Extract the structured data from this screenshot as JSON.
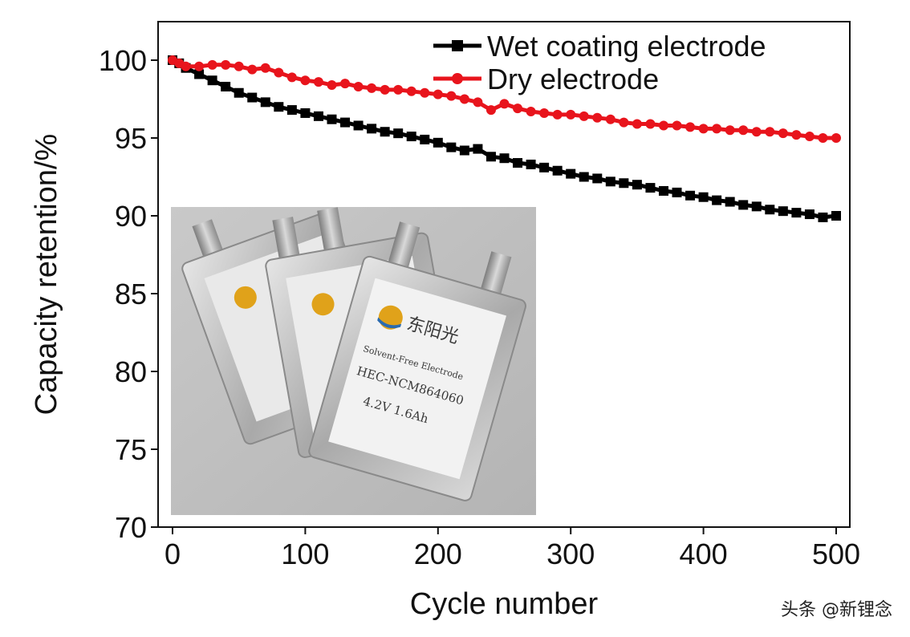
{
  "chart_data": {
    "type": "line",
    "title": "",
    "xlabel": "Cycle number",
    "ylabel": "Capacity retention/%",
    "xlim": [
      0,
      500
    ],
    "ylim": [
      70,
      102
    ],
    "xticks": [
      0,
      100,
      200,
      300,
      400,
      500
    ],
    "yticks": [
      70,
      75,
      80,
      85,
      90,
      95,
      100
    ],
    "legend_position": "top-right",
    "series": [
      {
        "name": "Wet coating electrode",
        "color": "#000000",
        "marker": "square",
        "x": [
          0,
          5,
          10,
          20,
          30,
          40,
          50,
          60,
          70,
          80,
          90,
          100,
          110,
          120,
          130,
          140,
          150,
          160,
          170,
          180,
          190,
          200,
          210,
          220,
          230,
          240,
          250,
          260,
          270,
          280,
          290,
          300,
          310,
          320,
          330,
          340,
          350,
          360,
          370,
          380,
          390,
          400,
          410,
          420,
          430,
          440,
          450,
          460,
          470,
          480,
          490,
          500
        ],
        "y": [
          100.0,
          99.8,
          99.5,
          99.1,
          98.7,
          98.3,
          97.9,
          97.6,
          97.3,
          97.0,
          96.8,
          96.6,
          96.4,
          96.2,
          96.0,
          95.8,
          95.6,
          95.4,
          95.3,
          95.1,
          94.9,
          94.7,
          94.4,
          94.2,
          94.3,
          93.8,
          93.7,
          93.4,
          93.3,
          93.1,
          92.9,
          92.7,
          92.5,
          92.4,
          92.2,
          92.1,
          92.0,
          91.8,
          91.6,
          91.5,
          91.3,
          91.2,
          91.0,
          90.9,
          90.7,
          90.6,
          90.4,
          90.3,
          90.2,
          90.1,
          89.9,
          90.0
        ]
      },
      {
        "name": "Dry electrode",
        "color": "#e8141c",
        "marker": "circle",
        "x": [
          0,
          5,
          10,
          20,
          30,
          40,
          50,
          60,
          70,
          80,
          90,
          100,
          110,
          120,
          130,
          140,
          150,
          160,
          170,
          180,
          190,
          200,
          210,
          220,
          230,
          240,
          250,
          260,
          270,
          280,
          290,
          300,
          310,
          320,
          330,
          340,
          350,
          360,
          370,
          380,
          390,
          400,
          410,
          420,
          430,
          440,
          450,
          460,
          470,
          480,
          490,
          500
        ],
        "y": [
          100.0,
          99.8,
          99.6,
          99.6,
          99.7,
          99.7,
          99.6,
          99.4,
          99.5,
          99.2,
          98.9,
          98.7,
          98.6,
          98.4,
          98.5,
          98.3,
          98.2,
          98.1,
          98.1,
          98.0,
          97.9,
          97.8,
          97.7,
          97.5,
          97.3,
          96.8,
          97.2,
          96.9,
          96.7,
          96.6,
          96.5,
          96.5,
          96.4,
          96.3,
          96.2,
          96.0,
          95.9,
          95.9,
          95.8,
          95.8,
          95.7,
          95.6,
          95.6,
          95.5,
          95.5,
          95.4,
          95.4,
          95.3,
          95.2,
          95.1,
          95.0,
          95.0
        ]
      }
    ]
  },
  "inset": {
    "name": "pouch-cells-photo",
    "cell_brand_text": "东阳光",
    "cell_line1": "Solvent-Free Electrode",
    "cell_line2": "HEC-NCM864060",
    "cell_line3": "4.2V 1.6Ah"
  },
  "watermark": "头条 @新锂念"
}
